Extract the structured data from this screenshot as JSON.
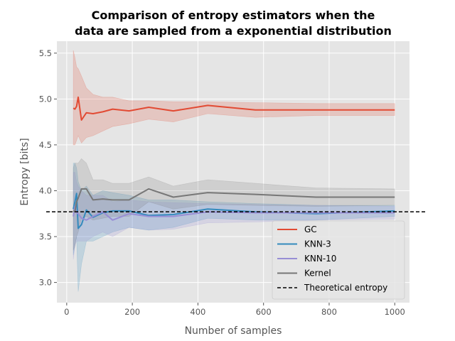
{
  "chart_data": {
    "type": "line",
    "title_line1": "Comparison of entropy estimators when the",
    "title_line2": "data are sampled from a exponential distribution",
    "xlabel": "Number of samples",
    "ylabel": "Entropy [bits]",
    "xlim": [
      -30,
      1045
    ],
    "ylim": [
      2.78,
      5.63
    ],
    "xticks": [
      0,
      200,
      400,
      600,
      800,
      1000
    ],
    "yticks": [
      3.0,
      3.5,
      4.0,
      4.5,
      5.0,
      5.5
    ],
    "xtick_labels": [
      "0",
      "200",
      "400",
      "600",
      "800",
      "1000"
    ],
    "ytick_labels": [
      "3.0",
      "3.5",
      "4.0",
      "4.5",
      "5.0",
      "5.5"
    ],
    "grid": true,
    "legend_position": "lower-right",
    "theoretical_entropy": 3.77,
    "theoretical_label": "Theoretical entropy",
    "series": [
      {
        "name": "GC",
        "color": "#E24A33",
        "points": [
          [
            20,
            4.9
          ],
          [
            25,
            4.89
          ],
          [
            30,
            4.92
          ],
          [
            35,
            5.02
          ],
          [
            45,
            4.77
          ],
          [
            60,
            4.85
          ],
          [
            80,
            4.84
          ],
          [
            110,
            4.86
          ],
          [
            140,
            4.89
          ],
          [
            190,
            4.87
          ],
          [
            250,
            4.91
          ],
          [
            325,
            4.87
          ],
          [
            430,
            4.93
          ],
          [
            575,
            4.88
          ],
          [
            760,
            4.88
          ],
          [
            1000,
            4.88
          ]
        ],
        "upper": [
          5.53,
          5.45,
          5.35,
          5.33,
          5.25,
          5.12,
          5.05,
          5.02,
          5.02,
          4.98,
          4.98,
          4.97,
          4.97,
          4.96,
          4.95,
          4.95
        ],
        "lower": [
          4.5,
          4.5,
          4.55,
          4.6,
          4.52,
          4.58,
          4.6,
          4.65,
          4.7,
          4.73,
          4.78,
          4.75,
          4.84,
          4.8,
          4.82,
          4.82
        ]
      },
      {
        "name": "KNN-3",
        "color": "#348ABD",
        "points": [
          [
            20,
            3.8
          ],
          [
            25,
            3.88
          ],
          [
            30,
            3.97
          ],
          [
            35,
            3.59
          ],
          [
            45,
            3.63
          ],
          [
            60,
            3.79
          ],
          [
            80,
            3.71
          ],
          [
            110,
            3.76
          ],
          [
            140,
            3.78
          ],
          [
            190,
            3.78
          ],
          [
            250,
            3.73
          ],
          [
            325,
            3.74
          ],
          [
            430,
            3.8
          ],
          [
            575,
            3.77
          ],
          [
            760,
            3.75
          ],
          [
            1000,
            3.78
          ]
        ],
        "upper": [
          4.3,
          4.3,
          4.25,
          4.1,
          4.0,
          4.05,
          3.95,
          4.0,
          3.98,
          3.95,
          3.9,
          3.9,
          3.88,
          3.86,
          3.84,
          3.84
        ],
        "lower": [
          3.3,
          3.4,
          3.5,
          2.9,
          3.2,
          3.45,
          3.45,
          3.5,
          3.55,
          3.6,
          3.57,
          3.6,
          3.7,
          3.68,
          3.68,
          3.72
        ]
      },
      {
        "name": "KNN-10",
        "color": "#988ED5",
        "points": [
          [
            20,
            3.72
          ],
          [
            25,
            3.83
          ],
          [
            30,
            3.76
          ],
          [
            35,
            3.75
          ],
          [
            45,
            3.7
          ],
          [
            60,
            3.68
          ],
          [
            80,
            3.72
          ],
          [
            110,
            3.77
          ],
          [
            140,
            3.68
          ],
          [
            190,
            3.75
          ],
          [
            250,
            3.72
          ],
          [
            325,
            3.72
          ],
          [
            430,
            3.77
          ],
          [
            575,
            3.76
          ],
          [
            760,
            3.76
          ],
          [
            1000,
            3.76
          ]
        ],
        "upper": [
          4.2,
          4.2,
          4.1,
          4.05,
          4.0,
          3.95,
          3.95,
          3.95,
          3.88,
          3.9,
          3.88,
          3.87,
          3.86,
          3.85,
          3.84,
          3.83
        ],
        "lower": [
          3.25,
          3.4,
          3.45,
          3.45,
          3.45,
          3.45,
          3.5,
          3.55,
          3.5,
          3.6,
          3.57,
          3.58,
          3.65,
          3.66,
          3.68,
          3.69
        ]
      },
      {
        "name": "Kernel",
        "color": "#777777",
        "points": [
          [
            20,
            3.78
          ],
          [
            25,
            3.77
          ],
          [
            30,
            3.88
          ],
          [
            35,
            3.92
          ],
          [
            45,
            4.02
          ],
          [
            60,
            4.02
          ],
          [
            80,
            3.9
          ],
          [
            110,
            3.91
          ],
          [
            140,
            3.9
          ],
          [
            190,
            3.9
          ],
          [
            250,
            4.02
          ],
          [
            325,
            3.93
          ],
          [
            430,
            3.98
          ],
          [
            575,
            3.96
          ],
          [
            760,
            3.93
          ],
          [
            1000,
            3.93
          ]
        ],
        "upper": [
          4.25,
          4.3,
          4.3,
          4.3,
          4.35,
          4.3,
          4.12,
          4.12,
          4.08,
          4.08,
          4.15,
          4.05,
          4.12,
          4.08,
          4.03,
          4.02
        ],
        "lower": [
          3.35,
          3.4,
          3.5,
          3.55,
          3.7,
          3.72,
          3.68,
          3.7,
          3.72,
          3.72,
          3.88,
          3.8,
          3.85,
          3.84,
          3.83,
          3.84
        ]
      }
    ]
  }
}
